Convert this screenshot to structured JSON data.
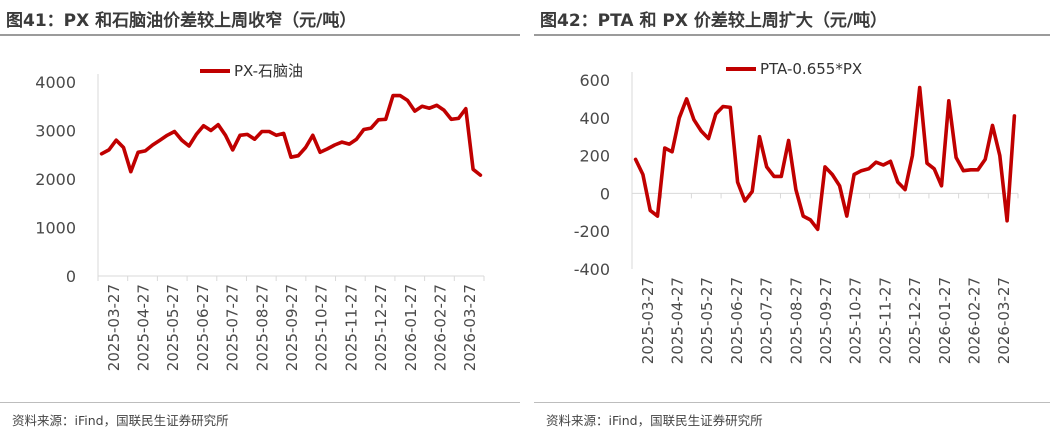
{
  "panels": {
    "left": {
      "title": "图41：PX 和石脑油价差较上周收窄（元/吨）",
      "source": "资料来源：iFind，国联民生证券研究所"
    },
    "right": {
      "title": "图42：PTA 和 PX 价差较上周扩大（元/吨）",
      "source": "资料来源：iFind，国联民生证券研究所"
    }
  },
  "chart_data": [
    {
      "type": "line",
      "title": "图41：PX 和石脑油价差较上周收窄（元/吨）",
      "ylim": [
        0,
        4000
      ],
      "yticks": [
        0,
        1000,
        2000,
        3000,
        4000
      ],
      "xticks": [
        "2025-03-27",
        "2025-04-27",
        "2025-05-27",
        "2025-06-27",
        "2025-07-27",
        "2025-08-27",
        "2025-09-27",
        "2025-10-27",
        "2025-11-27",
        "2025-12-27",
        "2026-01-27",
        "2026-02-27",
        "2026-03-27"
      ],
      "legend_position": "top-center",
      "series_color": "#c00000",
      "series": [
        {
          "name": "PX-石脑油",
          "values": [
            2520,
            2600,
            2800,
            2650,
            2150,
            2550,
            2580,
            2700,
            2800,
            2900,
            2980,
            2800,
            2680,
            2920,
            3100,
            3000,
            3120,
            2900,
            2600,
            2900,
            2920,
            2820,
            2980,
            2980,
            2900,
            2940,
            2450,
            2480,
            2650,
            2900,
            2550,
            2620,
            2700,
            2760,
            2720,
            2820,
            3020,
            3050,
            3220,
            3230,
            3720,
            3720,
            3620,
            3400,
            3500,
            3460,
            3520,
            3420,
            3230,
            3250,
            3450,
            2200,
            2080
          ]
        }
      ]
    },
    {
      "type": "line",
      "title": "图42：PTA 和 PX 价差较上周扩大（元/吨）",
      "ylim": [
        -400,
        600
      ],
      "yticks": [
        -400,
        -200,
        0,
        200,
        400,
        600
      ],
      "xticks": [
        "2025-03-27",
        "2025-04-27",
        "2025-05-27",
        "2025-06-27",
        "2025-07-27",
        "2025-08-27",
        "2025-09-27",
        "2025-10-27",
        "2025-11-27",
        "2025-12-27",
        "2026-01-27",
        "2026-02-27",
        "2026-03-27"
      ],
      "legend_position": "top-center",
      "series_color": "#c00000",
      "series": [
        {
          "name": "PTA-0.655*PX",
          "values": [
            180,
            100,
            -90,
            -120,
            240,
            220,
            400,
            500,
            390,
            330,
            290,
            420,
            460,
            455,
            60,
            -40,
            10,
            300,
            140,
            90,
            90,
            280,
            20,
            -120,
            -140,
            -190,
            140,
            100,
            40,
            -120,
            100,
            120,
            130,
            165,
            150,
            170,
            60,
            20,
            200,
            560,
            160,
            130,
            40,
            490,
            190,
            120,
            125,
            125,
            180,
            360,
            200,
            -145,
            410
          ]
        }
      ]
    }
  ]
}
